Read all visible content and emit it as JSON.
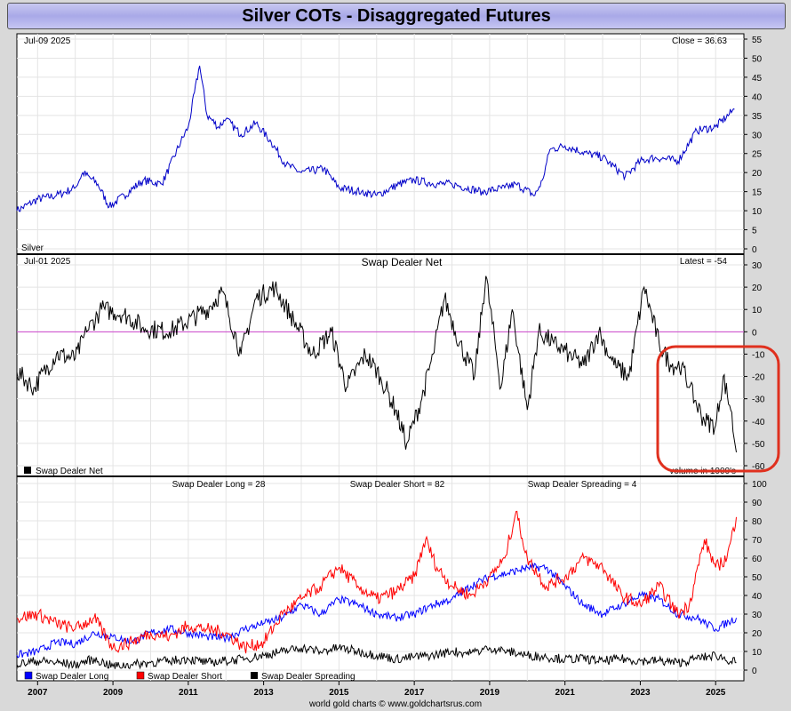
{
  "title": "Silver COTs - Disaggregated Futures",
  "footer": "world gold charts © www.goldchartsrus.com",
  "colors": {
    "background": "#d9d9d9",
    "price": "#0000c8",
    "net": "#000000",
    "zero_line": "#cc44cc",
    "long": "#0000ff",
    "short": "#ff0000",
    "spreading": "#000000",
    "highlight": "#e0301e"
  },
  "panels": {
    "top": {
      "date_label": "Jul-09  2025",
      "stat_label": "Close = 36.63",
      "name_label": "Silver"
    },
    "mid": {
      "date_label": "Jul-01  2025",
      "title": "Swap Dealer Net",
      "stat_label": "Latest = -54",
      "legend_label": "Swap Dealer Net",
      "note": "volume in 1000's"
    },
    "bottom": {
      "long_label": "Swap Dealer Long = 28",
      "short_label": "Swap Dealer Short = 82",
      "spread_label": "Swap Dealer Spreading = 4",
      "legend": [
        "Swap Dealer Long",
        "Swap Dealer Short",
        "Swap Dealer Spreading"
      ]
    }
  },
  "chart_data": [
    {
      "type": "line",
      "title": "",
      "series": [
        {
          "name": "Silver",
          "x": [
            2006.45,
            2007.0,
            2007.5,
            2008.0,
            2008.2,
            2008.6,
            2008.9,
            2009.3,
            2009.8,
            2010.3,
            2010.8,
            2011.0,
            2011.3,
            2011.5,
            2011.8,
            2012.0,
            2012.4,
            2012.8,
            2013.2,
            2013.6,
            2014.0,
            2014.6,
            2015.0,
            2015.6,
            2016.0,
            2016.6,
            2017.0,
            2017.6,
            2018.0,
            2018.8,
            2019.4,
            2019.7,
            2020.2,
            2020.4,
            2020.6,
            2021.0,
            2021.6,
            2022.0,
            2022.6,
            2023.0,
            2023.4,
            2024.0,
            2024.5,
            2025.0,
            2025.5
          ],
          "values": [
            10,
            13,
            14,
            16,
            20,
            17,
            11,
            14,
            18,
            17,
            28,
            32,
            48,
            35,
            32,
            34,
            30,
            33,
            28,
            22,
            20,
            21,
            16,
            15,
            14,
            17,
            18,
            17,
            17,
            15,
            16,
            17,
            14,
            18,
            26,
            27,
            25,
            24,
            19,
            23,
            24,
            23,
            31,
            32,
            36.6
          ]
        }
      ],
      "xlabel": "",
      "ylabel": "",
      "ylim": [
        0,
        55
      ],
      "yticks": [
        0,
        5,
        10,
        15,
        20,
        25,
        30,
        35,
        40,
        45,
        50,
        55
      ]
    },
    {
      "type": "line",
      "title": "Swap Dealer Net",
      "series": [
        {
          "name": "Swap Dealer Net",
          "x": [
            2006.45,
            2006.9,
            2007.5,
            2008.0,
            2008.3,
            2008.7,
            2009.3,
            2009.8,
            2010.5,
            2011.0,
            2011.5,
            2011.9,
            2012.4,
            2012.8,
            2013.3,
            2013.8,
            2014.3,
            2014.8,
            2015.2,
            2015.7,
            2016.1,
            2016.5,
            2016.8,
            2017.2,
            2017.5,
            2017.8,
            2018.2,
            2018.6,
            2018.9,
            2019.3,
            2019.6,
            2020.0,
            2020.3,
            2020.7,
            2021.1,
            2021.5,
            2021.9,
            2022.3,
            2022.7,
            2023.1,
            2023.5,
            2023.8,
            2024.1,
            2024.3,
            2024.7,
            2025.0,
            2025.2,
            2025.4,
            2025.55
          ],
          "values": [
            -18,
            -25,
            -10,
            -12,
            0,
            10,
            8,
            2,
            0,
            5,
            10,
            18,
            -10,
            15,
            20,
            5,
            -10,
            0,
            -25,
            -10,
            -20,
            -35,
            -50,
            -30,
            -10,
            15,
            -5,
            -20,
            25,
            -25,
            10,
            -35,
            0,
            -5,
            -10,
            -15,
            0,
            -15,
            -20,
            20,
            -5,
            -15,
            -15,
            -25,
            -40,
            -42,
            -20,
            -35,
            -54
          ]
        }
      ],
      "xlabel": "",
      "ylabel": "",
      "ylim": [
        -60,
        30
      ],
      "yticks": [
        -60,
        -50,
        -40,
        -30,
        -20,
        -10,
        0,
        10,
        20,
        30
      ]
    },
    {
      "type": "line",
      "title": "",
      "categories_x": [
        2007,
        2009,
        2011,
        2013,
        2015,
        2017,
        2019,
        2021,
        2023,
        2025
      ],
      "series": [
        {
          "name": "Swap Dealer Long",
          "x": [
            2006.45,
            2007.0,
            2007.5,
            2008.0,
            2008.5,
            2009.0,
            2009.5,
            2010.0,
            2010.5,
            2011.0,
            2011.5,
            2012.0,
            2012.5,
            2013.0,
            2013.5,
            2014.0,
            2014.5,
            2015.0,
            2015.5,
            2016.0,
            2016.5,
            2017.0,
            2017.5,
            2018.0,
            2018.5,
            2019.0,
            2019.5,
            2020.0,
            2020.5,
            2021.0,
            2021.5,
            2022.0,
            2022.5,
            2023.0,
            2023.5,
            2024.0,
            2024.5,
            2025.0,
            2025.55
          ],
          "values": [
            8,
            10,
            15,
            14,
            20,
            18,
            15,
            20,
            22,
            20,
            18,
            17,
            22,
            25,
            28,
            35,
            30,
            38,
            35,
            30,
            28,
            30,
            35,
            38,
            45,
            50,
            52,
            55,
            55,
            45,
            35,
            30,
            35,
            40,
            38,
            30,
            28,
            22,
            28
          ]
        },
        {
          "name": "Swap Dealer Short",
          "x": [
            2006.45,
            2007.0,
            2007.5,
            2008.0,
            2008.5,
            2009.0,
            2009.5,
            2010.0,
            2010.5,
            2011.0,
            2011.5,
            2012.0,
            2012.5,
            2013.0,
            2013.5,
            2014.0,
            2014.5,
            2015.0,
            2015.5,
            2016.0,
            2016.5,
            2017.0,
            2017.3,
            2017.6,
            2018.0,
            2018.5,
            2019.0,
            2019.4,
            2019.7,
            2020.0,
            2020.5,
            2021.0,
            2021.5,
            2022.0,
            2022.5,
            2023.0,
            2023.5,
            2024.0,
            2024.3,
            2024.7,
            2025.0,
            2025.3,
            2025.55
          ],
          "values": [
            28,
            30,
            25,
            22,
            28,
            12,
            15,
            20,
            18,
            24,
            22,
            20,
            12,
            15,
            30,
            38,
            45,
            55,
            45,
            38,
            42,
            50,
            70,
            55,
            45,
            40,
            50,
            60,
            85,
            60,
            45,
            50,
            60,
            55,
            40,
            35,
            45,
            30,
            35,
            70,
            55,
            60,
            82
          ]
        },
        {
          "name": "Swap Dealer Spreading",
          "x": [
            2006.45,
            2007.0,
            2007.5,
            2008.0,
            2008.5,
            2009.0,
            2009.5,
            2010.0,
            2010.5,
            2011.0,
            2011.5,
            2012.0,
            2012.5,
            2013.0,
            2013.5,
            2014.0,
            2014.5,
            2015.0,
            2015.5,
            2016.0,
            2016.5,
            2017.0,
            2017.5,
            2018.0,
            2018.5,
            2019.0,
            2019.5,
            2020.0,
            2020.5,
            2021.0,
            2021.5,
            2022.0,
            2022.5,
            2023.0,
            2023.5,
            2024.0,
            2024.5,
            2025.0,
            2025.55
          ],
          "values": [
            3,
            5,
            4,
            3,
            6,
            2,
            3,
            4,
            5,
            6,
            4,
            5,
            6,
            8,
            10,
            12,
            10,
            12,
            10,
            8,
            6,
            7,
            8,
            10,
            9,
            12,
            10,
            8,
            7,
            6,
            6,
            5,
            6,
            5,
            5,
            4,
            6,
            8,
            4
          ]
        }
      ],
      "xlabel": "",
      "ylabel": "",
      "ylim": [
        0,
        100
      ],
      "yticks": [
        0,
        10,
        20,
        30,
        40,
        50,
        60,
        70,
        80,
        90,
        100
      ],
      "xticks": [
        "2007",
        "2009",
        "2011",
        "2013",
        "2015",
        "2017",
        "2019",
        "2021",
        "2023",
        "2025"
      ]
    }
  ]
}
